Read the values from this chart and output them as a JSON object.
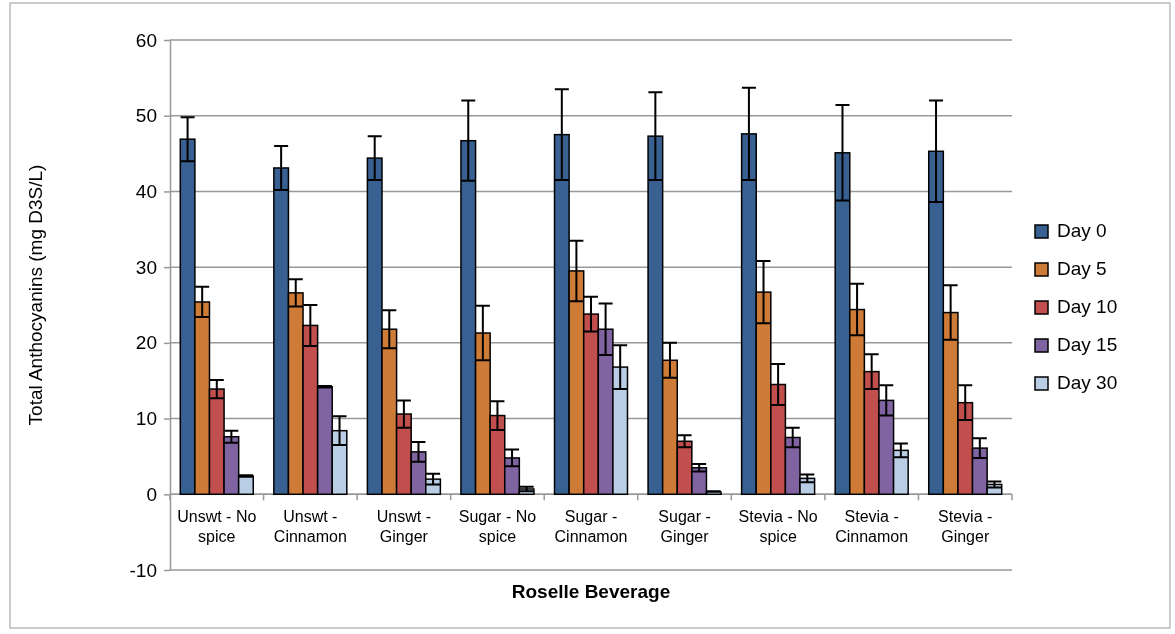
{
  "chart_data": {
    "type": "bar",
    "xlabel": "Roselle Beverage",
    "ylabel": "Total Anthocyanins (mg D3S/L)",
    "categories": [
      "Unswt - No spice",
      "Unswt - Cinnamon",
      "Unswt - Ginger",
      "Sugar - No spice",
      "Sugar - Cinnamon",
      "Sugar - Ginger",
      "Stevia - No spice",
      "Stevia - Cinnamon",
      "Stevia - Ginger"
    ],
    "series": [
      {
        "name": "Day 0",
        "color": "#386192",
        "values": [
          46.9,
          43.1,
          44.4,
          46.7,
          47.5,
          47.3,
          47.6,
          45.1,
          45.3
        ],
        "errors": [
          2.9,
          2.9,
          2.9,
          5.3,
          6.0,
          5.8,
          6.1,
          6.3,
          6.7
        ]
      },
      {
        "name": "Day 5",
        "color": "#cf7b38",
        "values": [
          25.4,
          26.6,
          21.8,
          21.3,
          29.5,
          17.7,
          26.7,
          24.4,
          24.0
        ],
        "errors": [
          2.0,
          1.8,
          2.5,
          3.6,
          4.0,
          2.3,
          4.1,
          3.4,
          3.6
        ]
      },
      {
        "name": "Day 10",
        "color": "#c04f4e",
        "values": [
          13.9,
          22.3,
          10.6,
          10.4,
          23.8,
          7.0,
          14.5,
          16.2,
          12.1
        ],
        "errors": [
          1.2,
          2.7,
          1.8,
          1.9,
          2.3,
          0.8,
          2.7,
          2.3,
          2.3
        ]
      },
      {
        "name": "Day 15",
        "color": "#8064a2",
        "values": [
          7.6,
          14.2,
          5.6,
          4.8,
          21.8,
          3.5,
          7.5,
          12.4,
          6.1
        ],
        "errors": [
          0.8,
          0.1,
          1.3,
          1.1,
          3.4,
          0.5,
          1.3,
          2.0,
          1.3
        ]
      },
      {
        "name": "Day 30",
        "color": "#b9cde5",
        "values": [
          2.4,
          8.4,
          2.0,
          0.7,
          16.8,
          0.3,
          2.1,
          5.8,
          1.3
        ],
        "errors": [
          0.1,
          1.9,
          0.7,
          0.3,
          2.9,
          0.1,
          0.5,
          0.9,
          0.4
        ]
      }
    ],
    "ylim": [
      -10,
      60
    ],
    "yticks": [
      -10,
      0,
      10,
      20,
      30,
      40,
      50,
      60
    ],
    "grid": "y",
    "legend": "right"
  }
}
